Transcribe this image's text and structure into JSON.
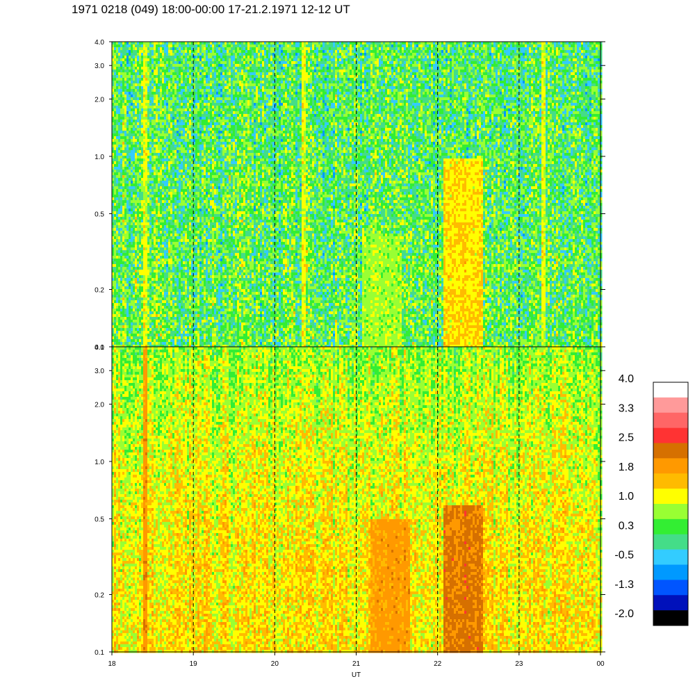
{
  "title": "1971 0218 (049) 18:00-00:00 17-21.2.1971 12-12 UT",
  "chart_data": [
    {
      "type": "heatmap",
      "panel": "upper",
      "y_scale": "log",
      "ylim": [
        0.1,
        4.0
      ],
      "yticks": [
        "4.0",
        "3.0",
        "2.0",
        "1.0",
        "0.5",
        "0.2",
        "0.1"
      ],
      "xlim": [
        "18",
        "00"
      ],
      "dashed_hour_lines": [
        "19",
        "20",
        "21",
        "22",
        "23"
      ],
      "dominant_levels": "0.3 to 1.0 (green / light green), patches of -0.5 (cyan) and -1.3 (blue)",
      "notable_features": [
        {
          "x_hour": 21.3,
          "y_range": [
            0.1,
            0.4
          ],
          "level": 1.0
        },
        {
          "x_hour": 22.3,
          "y_range": [
            0.1,
            1.0
          ],
          "level": 1.8
        },
        {
          "x_hour": 18.4,
          "y_range": [
            0.1,
            4.0
          ],
          "level": 1.4
        },
        {
          "x_hour": 20.35,
          "y_range": [
            0.1,
            4.0
          ],
          "level": 1.4
        },
        {
          "x_hour": 23.3,
          "y_range": [
            0.1,
            4.0
          ],
          "level": 1.4
        }
      ]
    },
    {
      "type": "heatmap",
      "panel": "lower",
      "y_scale": "log",
      "ylim": [
        0.1,
        4.0
      ],
      "yticks": [
        "4.0",
        "3.0",
        "2.0",
        "1.0",
        "0.5",
        "0.2",
        "0.1"
      ],
      "xlim": [
        "18",
        "00"
      ],
      "xticks": [
        "18",
        "19",
        "20",
        "21",
        "22",
        "23",
        "00"
      ],
      "xlabel": "UT",
      "dashed_hour_lines": [
        "19",
        "20",
        "21",
        "22",
        "23"
      ],
      "dominant_levels": "1.0 to 1.8 (yellow / orange), green near top",
      "notable_features": [
        {
          "x_hour": 21.4,
          "y_range": [
            0.1,
            0.5
          ],
          "level": 2.2
        },
        {
          "x_hour": 22.3,
          "y_range": [
            0.1,
            0.6
          ],
          "level": 2.7
        },
        {
          "x_hour": 18.4,
          "y_range": [
            0.1,
            4.0
          ],
          "level": 2.5
        }
      ]
    }
  ],
  "colorbar": {
    "colors": [
      "#ffffff",
      "#ff9a9a",
      "#ff6666",
      "#ff3333",
      "#d67000",
      "#ff9900",
      "#ffbb00",
      "#ffff00",
      "#99ff33",
      "#33ee33",
      "#44dd88",
      "#33ccff",
      "#0099ff",
      "#0055ff",
      "#0011bb",
      "#000000"
    ],
    "labels": [
      "4.0",
      "3.3",
      "2.5",
      "1.8",
      "1.0",
      "0.3",
      "-0.5",
      "-1.3",
      "-2.0"
    ],
    "range": [
      -2.0,
      4.0
    ]
  }
}
